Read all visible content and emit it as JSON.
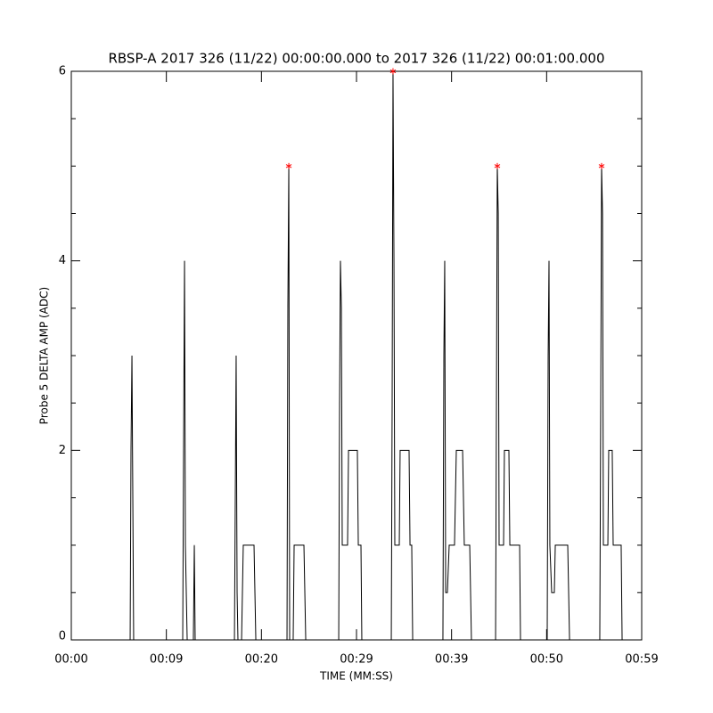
{
  "chart_data": {
    "type": "line",
    "title": "RBSP-A 2017 326 (11/22) 00:00:00.000 to 2017 326 (11/22) 00:01:00.000",
    "xlabel": "TIME (MM:SS)",
    "ylabel": "Probe 5 DELTA AMP (ADC)",
    "xlim": [
      0,
      60
    ],
    "ylim": [
      0,
      6
    ],
    "xticks": [
      {
        "value": 0,
        "label": "00:00"
      },
      {
        "value": 10,
        "label": "00:09"
      },
      {
        "value": 20,
        "label": "00:20"
      },
      {
        "value": 30,
        "label": "00:29"
      },
      {
        "value": 40,
        "label": "00:39"
      },
      {
        "value": 50,
        "label": "00:50"
      },
      {
        "value": 60,
        "label": "00:59"
      }
    ],
    "yticks": [
      0,
      2,
      4,
      6
    ],
    "yminorticks": [
      0.5,
      1,
      1.5,
      2.5,
      3,
      3.5,
      4.5,
      5,
      5.5
    ],
    "series": [
      {
        "color": "#000000",
        "x": [
          0,
          6.19,
          6.28,
          6.38,
          6.47,
          6.56,
          11.72,
          11.81,
          11.91,
          12.0,
          12.19,
          12.84,
          12.94,
          13.03,
          17.16,
          17.25,
          17.34,
          17.44,
          17.53,
          17.91,
          18.09,
          19.22,
          19.41,
          22.69,
          22.78,
          22.88,
          22.97,
          23.34,
          23.44,
          24.47,
          24.66,
          28.13,
          28.22,
          28.31,
          28.41,
          28.5,
          29.06,
          29.16,
          30.09,
          30.19,
          30.47,
          30.56,
          33.66,
          33.75,
          33.84,
          33.94,
          34.03,
          34.5,
          34.59,
          35.53,
          35.63,
          35.81,
          35.91,
          39.09,
          39.19,
          39.28,
          39.38,
          39.56,
          39.75,
          40.31,
          40.5,
          41.16,
          41.34,
          41.91,
          42.09,
          44.63,
          44.72,
          44.81,
          44.91,
          45.0,
          45.47,
          45.56,
          46.03,
          46.13,
          47.16,
          47.25,
          50.06,
          50.16,
          50.25,
          50.34,
          50.53,
          50.81,
          50.91,
          52.22,
          52.41,
          55.59,
          55.69,
          55.78,
          55.88,
          55.97,
          56.44,
          56.53,
          56.9,
          57.0,
          57.84,
          57.94,
          60
        ],
        "values": [
          0,
          0,
          2,
          3,
          1.5,
          0,
          0,
          2,
          4,
          1,
          0,
          0,
          1,
          0,
          0,
          1.5,
          3,
          0.5,
          0,
          0,
          1,
          1,
          0,
          0,
          3.5,
          5,
          0,
          0,
          1,
          1,
          0,
          0,
          2.5,
          4,
          3.5,
          1,
          1,
          2,
          2,
          1,
          1,
          0,
          0,
          2.5,
          6,
          4,
          1,
          1,
          2,
          2,
          1,
          1,
          0,
          0,
          3,
          4,
          0.5,
          0.5,
          1,
          1,
          2,
          2,
          1,
          1,
          0,
          0,
          2.5,
          5,
          4.5,
          1,
          1,
          2,
          2,
          1,
          1,
          0,
          0,
          3,
          4,
          1,
          0.5,
          0.5,
          1,
          1,
          0,
          0,
          2.5,
          5,
          4.5,
          1,
          1,
          2,
          2,
          1,
          1,
          0,
          0
        ]
      }
    ],
    "markers": {
      "color": "#ff0000",
      "x": [
        22.88,
        33.84,
        44.81,
        55.78
      ],
      "values": [
        5,
        6,
        5,
        5
      ]
    }
  }
}
